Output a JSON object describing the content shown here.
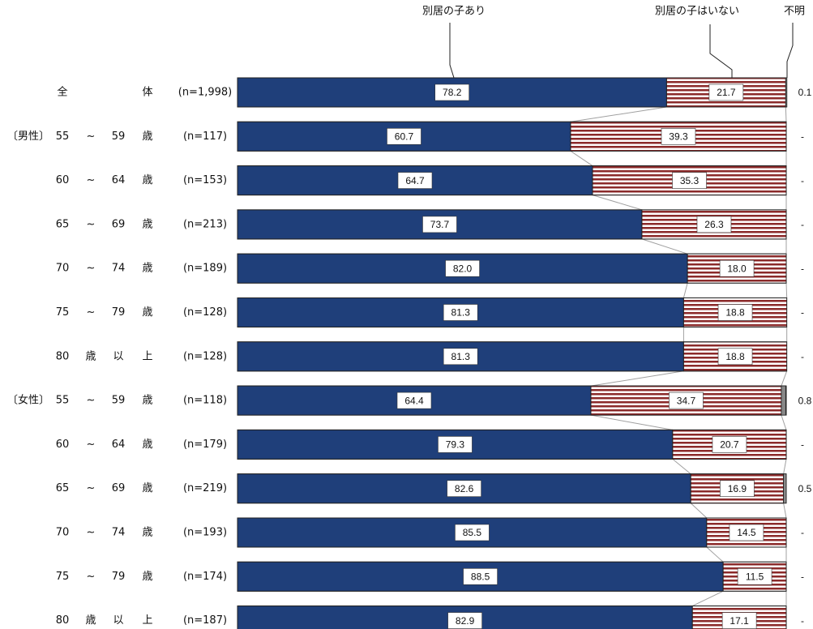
{
  "chart_data": {
    "type": "bar",
    "stacked": true,
    "orientation": "horizontal",
    "percent_scale": [
      0,
      100
    ],
    "legend": {
      "position": "top",
      "labels": [
        "別居の子あり",
        "別居の子はいない",
        "不明"
      ]
    },
    "series": [
      {
        "name": "別居の子あり",
        "color": "#1f3f7a",
        "pattern": "solid",
        "values": [
          78.2,
          60.7,
          64.7,
          73.7,
          82.0,
          81.3,
          81.3,
          64.4,
          79.3,
          82.6,
          85.5,
          88.5,
          82.9
        ]
      },
      {
        "name": "別居の子はいない",
        "color": "#8b2a2a",
        "pattern": "horizontal-stripes",
        "values": [
          21.7,
          39.3,
          35.3,
          26.3,
          18.0,
          18.8,
          18.8,
          34.7,
          20.7,
          16.9,
          14.5,
          11.5,
          17.1
        ]
      },
      {
        "name": "不明",
        "color": "#888888",
        "pattern": "solid",
        "values": [
          0.1,
          0,
          0,
          0,
          0,
          0,
          0,
          0.8,
          0,
          0.5,
          0,
          0,
          0
        ]
      }
    ],
    "rows": [
      {
        "group": "",
        "age_from": "全",
        "sep": "",
        "age_to": "",
        "unit": "体",
        "n": "(n=1,998)",
        "labels": [
          "78.2",
          "21.7",
          "0.1"
        ]
      },
      {
        "group": "〔男性〕",
        "age_from": "55",
        "sep": "~",
        "age_to": "59",
        "unit": "歳",
        "n": "(n=117)",
        "labels": [
          "60.7",
          "39.3",
          "-"
        ]
      },
      {
        "group": "",
        "age_from": "60",
        "sep": "~",
        "age_to": "64",
        "unit": "歳",
        "n": "(n=153)",
        "labels": [
          "64.7",
          "35.3",
          "-"
        ]
      },
      {
        "group": "",
        "age_from": "65",
        "sep": "~",
        "age_to": "69",
        "unit": "歳",
        "n": "(n=213)",
        "labels": [
          "73.7",
          "26.3",
          "-"
        ]
      },
      {
        "group": "",
        "age_from": "70",
        "sep": "~",
        "age_to": "74",
        "unit": "歳",
        "n": "(n=189)",
        "labels": [
          "82.0",
          "18.0",
          "-"
        ]
      },
      {
        "group": "",
        "age_from": "75",
        "sep": "~",
        "age_to": "79",
        "unit": "歳",
        "n": "(n=128)",
        "labels": [
          "81.3",
          "18.8",
          "-"
        ]
      },
      {
        "group": "",
        "age_from": "80",
        "sep": "歳",
        "age_to": "以",
        "unit": "上",
        "n": "(n=128)",
        "labels": [
          "81.3",
          "18.8",
          "-"
        ]
      },
      {
        "group": "〔女性〕",
        "age_from": "55",
        "sep": "~",
        "age_to": "59",
        "unit": "歳",
        "n": "(n=118)",
        "labels": [
          "64.4",
          "34.7",
          "0.8"
        ]
      },
      {
        "group": "",
        "age_from": "60",
        "sep": "~",
        "age_to": "64",
        "unit": "歳",
        "n": "(n=179)",
        "labels": [
          "79.3",
          "20.7",
          "-"
        ]
      },
      {
        "group": "",
        "age_from": "65",
        "sep": "~",
        "age_to": "69",
        "unit": "歳",
        "n": "(n=219)",
        "labels": [
          "82.6",
          "16.9",
          "0.5"
        ]
      },
      {
        "group": "",
        "age_from": "70",
        "sep": "~",
        "age_to": "74",
        "unit": "歳",
        "n": "(n=193)",
        "labels": [
          "85.5",
          "14.5",
          "-"
        ]
      },
      {
        "group": "",
        "age_from": "75",
        "sep": "~",
        "age_to": "79",
        "unit": "歳",
        "n": "(n=174)",
        "labels": [
          "88.5",
          "11.5",
          "-"
        ]
      },
      {
        "group": "",
        "age_from": "80",
        "sep": "歳",
        "age_to": "以",
        "unit": "上",
        "n": "(n=187)",
        "labels": [
          "82.9",
          "17.1",
          "-"
        ]
      }
    ]
  }
}
